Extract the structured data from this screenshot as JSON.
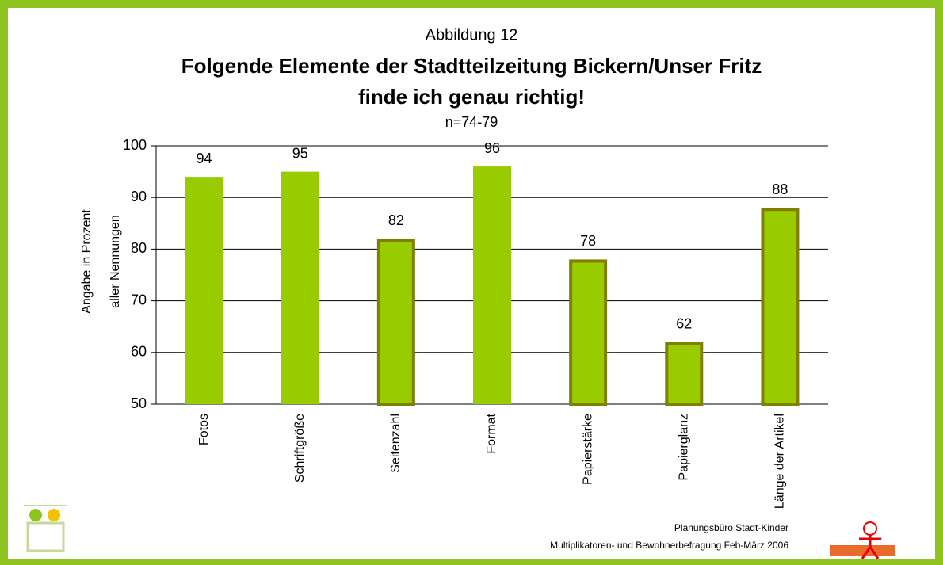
{
  "chart_data": {
    "type": "bar",
    "supertitle": "Abbildung 12",
    "title": [
      "Folgende Elemente der Stadtteilzeitung Bickern/Unser Fritz",
      "finde ich genau richtig!"
    ],
    "subtitle": "n=74-79",
    "ylabel": [
      "Angabe in Prozent",
      "aller Nennungen"
    ],
    "categories": [
      "Fotos",
      "Schriftgröße",
      "Seitenzahl",
      "Format",
      "Papierstärke",
      "Papierglanz",
      "Länge der Artikel"
    ],
    "values": [
      94,
      95,
      82,
      96,
      78,
      62,
      88
    ],
    "color": "#99cc00",
    "edgecolors": [
      null,
      null,
      "#808000",
      null,
      "#808000",
      "#808000",
      "#808000"
    ],
    "ylim": [
      50,
      100
    ],
    "yticks": [
      50,
      60,
      70,
      80,
      90,
      100
    ],
    "grid": true,
    "footer": [
      "Planungsbüro Stadt-Kinder",
      "Multiplikatoren- und Bewohnerbefragung Feb-März 2006"
    ]
  }
}
